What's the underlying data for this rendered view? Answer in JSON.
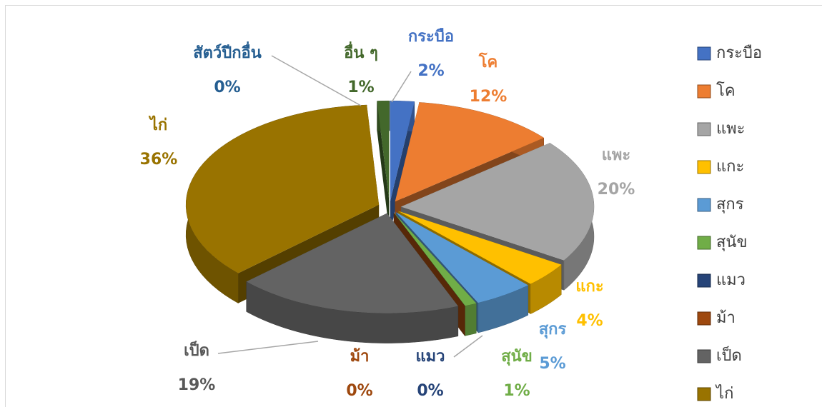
{
  "chart_data": {
    "type": "pie",
    "categories": [
      "กระบือ",
      "โค",
      "แพะ",
      "แกะ",
      "สุกร",
      "สุนัข",
      "แมว",
      "ม้า",
      "เป็ด",
      "ไก่",
      "อื่น ๆ",
      "สัตว์ปีกอื่น"
    ],
    "values": [
      2,
      12,
      20,
      4,
      5,
      1,
      0,
      0,
      19,
      36,
      1,
      0
    ],
    "value_labels": [
      "2%",
      "12%",
      "20%",
      "4%",
      "5%",
      "1%",
      "0%",
      "0%",
      "19%",
      "36%",
      "1%",
      "0%"
    ],
    "colors": [
      "#4472c4",
      "#ed7d31",
      "#a5a5a5",
      "#ffc000",
      "#5b9bd5",
      "#70ad47",
      "#264478",
      "#9e480e",
      "#636363",
      "#997300",
      "#43682b",
      "#255e91"
    ],
    "legend": "right"
  }
}
